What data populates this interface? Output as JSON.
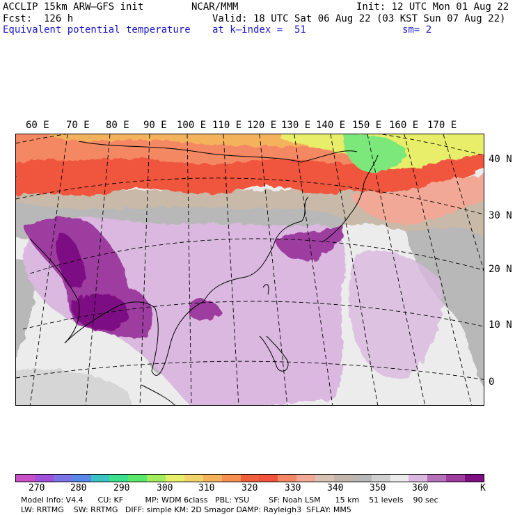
{
  "header": {
    "model_line": "ACCLIP 15km ARW—GFS init",
    "org": "NCAR/MMM",
    "init": "Init: 12 UTC Mon 01 Aug 22",
    "fcst": "Fcst:  126 h",
    "valid": "Valid: 18 UTC Sat 06 Aug 22 (03 KST Sun 07 Aug 22)",
    "field": "Equivalent potential temperature",
    "level": "at k—index =  51",
    "smooth": "sm= 2"
  },
  "map": {
    "lon_labels": [
      "60 E",
      "70 E",
      "80 E",
      "90 E",
      "100 E",
      "110 E",
      "120 E",
      "130 E",
      "140 E",
      "150 E",
      "160 E",
      "170 E"
    ],
    "lat_labels": [
      "40 N",
      "30 N",
      "20 N",
      "10 N",
      "0"
    ],
    "colors": {
      "cold_green": "#7be87b",
      "yellow": "#e8ee6a",
      "orange": "#f5a050",
      "red": "#f0543c",
      "salmon": "#f2a896",
      "tan": "#c9b9a8",
      "gray": "#b8b8b8",
      "light_gray": "#d6d6d6",
      "pale_gray": "#ececec",
      "light_purple": "#dab8e0",
      "purple": "#9e3ca0",
      "dark_purple": "#7d0f82"
    }
  },
  "colorbar": {
    "unit": "K",
    "ticks": [
      "270",
      "280",
      "290",
      "300",
      "310",
      "320",
      "330",
      "340",
      "350",
      "360"
    ],
    "colors": [
      "#c84ec8",
      "#a050d8",
      "#7a74e6",
      "#5a88e8",
      "#3cc4c4",
      "#3ce08c",
      "#5ce86a",
      "#a2ee5e",
      "#e8ee6a",
      "#f2d26a",
      "#f5b25c",
      "#f59050",
      "#f0603c",
      "#f0543c",
      "#f48864",
      "#f2a896",
      "#d8c2b4",
      "#c4b6aa",
      "#b8b8b8",
      "#d0d0d0",
      "#ececec",
      "#dab8e0",
      "#b470b8",
      "#9e3ca0",
      "#7d0f82"
    ]
  },
  "footer": {
    "line1": "Model Info: V4.4      CU: KF         MP: WDM 6class   PBL: YSU        SF: Noah LSM      15 km    51 levels    90 sec",
    "line2": "LW: RRTMG    SW: RRTMG   DIFF: simple KM: 2D Smagor DAMP: Rayleigh3  SFLAY: MM5"
  }
}
